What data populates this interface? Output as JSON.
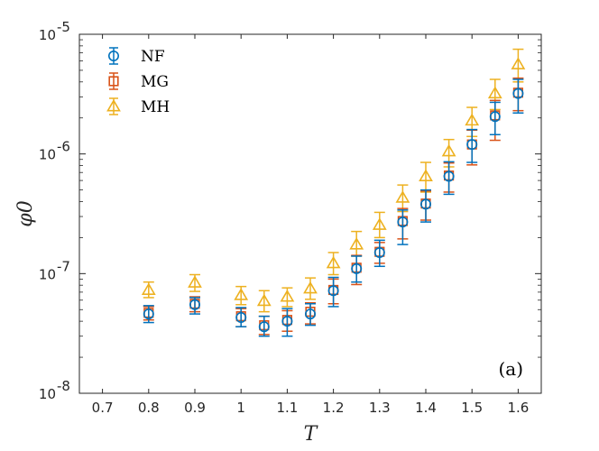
{
  "chart_data": {
    "type": "scatter",
    "title": "",
    "xlabel": "T",
    "ylabel": "φ0",
    "yscale": "log",
    "xlim": [
      0.65,
      1.65
    ],
    "ylim": [
      1e-08,
      1e-05
    ],
    "xticks": [
      0.7,
      0.8,
      0.9,
      1.0,
      1.1,
      1.2,
      1.3,
      1.4,
      1.5,
      1.6
    ],
    "xtick_labels": [
      "0.7",
      "0.8",
      "0.9",
      "1",
      "1.1",
      "1.2",
      "1.3",
      "1.4",
      "1.5",
      "1.6"
    ],
    "yticks": [
      {
        "value": 1e-08,
        "base": "10",
        "exp": "-8"
      },
      {
        "value": 1e-07,
        "base": "10",
        "exp": "-7"
      },
      {
        "value": 1e-06,
        "base": "10",
        "exp": "-6"
      },
      {
        "value": 1e-05,
        "base": "10",
        "exp": "-5"
      }
    ],
    "annotation": "(a)",
    "legend_position": "top-left",
    "series": [
      {
        "name": "NF",
        "marker": "circle",
        "color": "#0072BD",
        "x": [
          0.8,
          0.9,
          1.0,
          1.05,
          1.1,
          1.15,
          1.2,
          1.25,
          1.3,
          1.35,
          1.4,
          1.45,
          1.5,
          1.55,
          1.6
        ],
        "y": [
          4.6e-08,
          5.5e-08,
          4.3e-08,
          3.6e-08,
          4e-08,
          4.6e-08,
          7.2e-08,
          1.1e-07,
          1.5e-07,
          2.7e-07,
          3.8e-07,
          6.5e-07,
          1.2e-06,
          2.05e-06,
          3.2e-06
        ],
        "y_low": [
          3.9e-08,
          4.6e-08,
          3.6e-08,
          3e-08,
          3e-08,
          3.7e-08,
          5.3e-08,
          8.5e-08,
          1.15e-07,
          1.75e-07,
          2.7e-07,
          4.6e-07,
          8.5e-07,
          1.45e-06,
          2.2e-06
        ],
        "y_high": [
          5.4e-08,
          6.3e-08,
          5.2e-08,
          4.4e-08,
          5.1e-08,
          5.6e-08,
          9.3e-08,
          1.4e-07,
          1.9e-07,
          3.4e-07,
          5e-07,
          8.6e-07,
          1.6e-06,
          2.7e-06,
          4.2e-06
        ]
      },
      {
        "name": "MG",
        "marker": "square",
        "color": "#D95319",
        "x": [
          0.8,
          0.9,
          1.0,
          1.05,
          1.1,
          1.15,
          1.2,
          1.25,
          1.3,
          1.35,
          1.4,
          1.45,
          1.5,
          1.55,
          1.6
        ],
        "y": [
          4.7e-08,
          5.6e-08,
          4.4e-08,
          3.7e-08,
          4.1e-08,
          4.8e-08,
          7.3e-08,
          1.12e-07,
          1.52e-07,
          2.75e-07,
          3.85e-07,
          6.6e-07,
          1.2e-06,
          2.1e-06,
          3.25e-06
        ],
        "y_low": [
          4.1e-08,
          4.8e-08,
          3.6e-08,
          3.1e-08,
          3.3e-08,
          3.8e-08,
          5.6e-08,
          8.1e-08,
          1.22e-07,
          1.95e-07,
          2.8e-07,
          4.8e-07,
          8.1e-07,
          1.3e-06,
          2.3e-06
        ],
        "y_high": [
          5.3e-08,
          6.4e-08,
          5.1e-08,
          4.4e-08,
          4.9e-08,
          5.7e-08,
          9e-08,
          1.42e-07,
          1.82e-07,
          3.5e-07,
          4.9e-07,
          8.4e-07,
          1.58e-06,
          2.8e-06,
          4.3e-06
        ]
      },
      {
        "name": "MH",
        "marker": "triangle",
        "color": "#EDB120",
        "x": [
          0.8,
          0.9,
          1.0,
          1.05,
          1.1,
          1.15,
          1.2,
          1.25,
          1.3,
          1.35,
          1.4,
          1.45,
          1.5,
          1.55,
          1.6
        ],
        "y": [
          7.3e-08,
          8.4e-08,
          6.6e-08,
          5.9e-08,
          6.4e-08,
          7.5e-08,
          1.22e-07,
          1.75e-07,
          2.55e-07,
          4.3e-07,
          6.5e-07,
          1.05e-06,
          1.9e-06,
          3.2e-06,
          5.6e-06
        ],
        "y_low": [
          6.3e-08,
          7.1e-08,
          5.5e-08,
          4.8e-08,
          5.3e-08,
          6.1e-08,
          9.8e-08,
          1.4e-07,
          2e-07,
          3.3e-07,
          4.8e-07,
          7.8e-07,
          1.4e-06,
          2.35e-06,
          4e-06
        ],
        "y_high": [
          8.5e-08,
          9.8e-08,
          7.8e-08,
          7.2e-08,
          7.6e-08,
          9.2e-08,
          1.5e-07,
          2.25e-07,
          3.25e-07,
          5.5e-07,
          8.5e-07,
          1.32e-06,
          2.45e-06,
          4.2e-06,
          7.5e-06
        ]
      }
    ]
  }
}
